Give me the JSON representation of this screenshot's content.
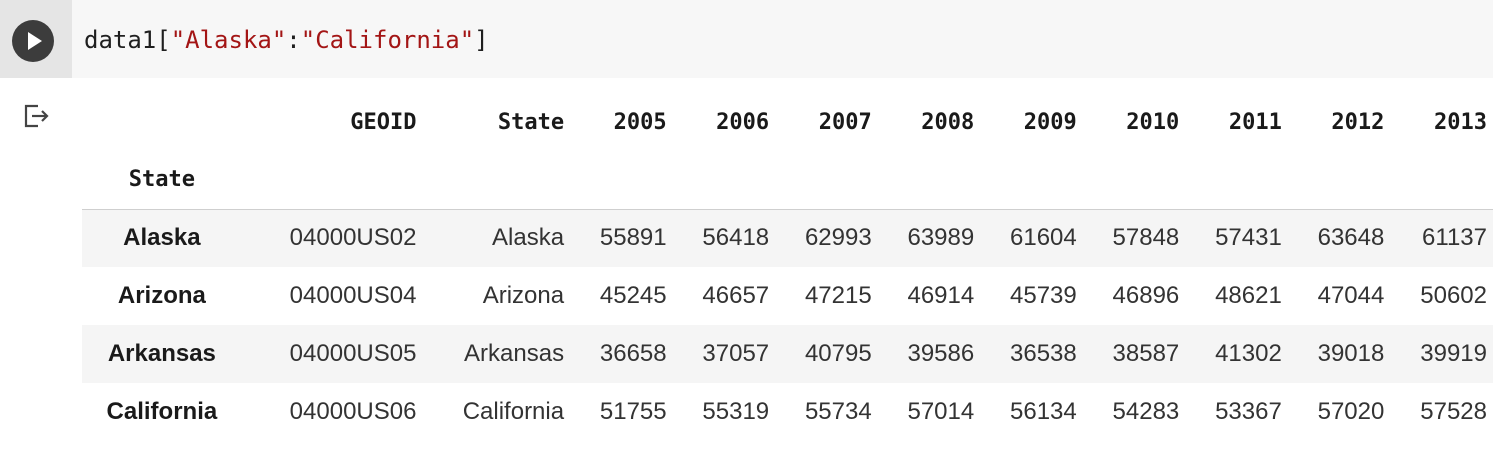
{
  "cell": {
    "code_prefix": "data1[",
    "code_str1": "\"Alaska\"",
    "code_colon": ":",
    "code_str2": "\"California\"",
    "code_suffix": "]"
  },
  "table": {
    "columns": [
      "GEOID",
      "State",
      "2005",
      "2006",
      "2007",
      "2008",
      "2009",
      "2010",
      "2011",
      "2012",
      "2013"
    ],
    "index_name": "State",
    "rows": [
      {
        "index": "Alaska",
        "values": [
          "04000US02",
          "Alaska",
          "55891",
          "56418",
          "62993",
          "63989",
          "61604",
          "57848",
          "57431",
          "63648",
          "61137"
        ]
      },
      {
        "index": "Arizona",
        "values": [
          "04000US04",
          "Arizona",
          "45245",
          "46657",
          "47215",
          "46914",
          "45739",
          "46896",
          "48621",
          "47044",
          "50602"
        ]
      },
      {
        "index": "Arkansas",
        "values": [
          "04000US05",
          "Arkansas",
          "36658",
          "37057",
          "40795",
          "39586",
          "36538",
          "38587",
          "41302",
          "39018",
          "39919"
        ]
      },
      {
        "index": "California",
        "values": [
          "04000US06",
          "California",
          "51755",
          "55319",
          "55734",
          "57014",
          "56134",
          "54283",
          "53367",
          "57020",
          "57528"
        ]
      }
    ]
  }
}
